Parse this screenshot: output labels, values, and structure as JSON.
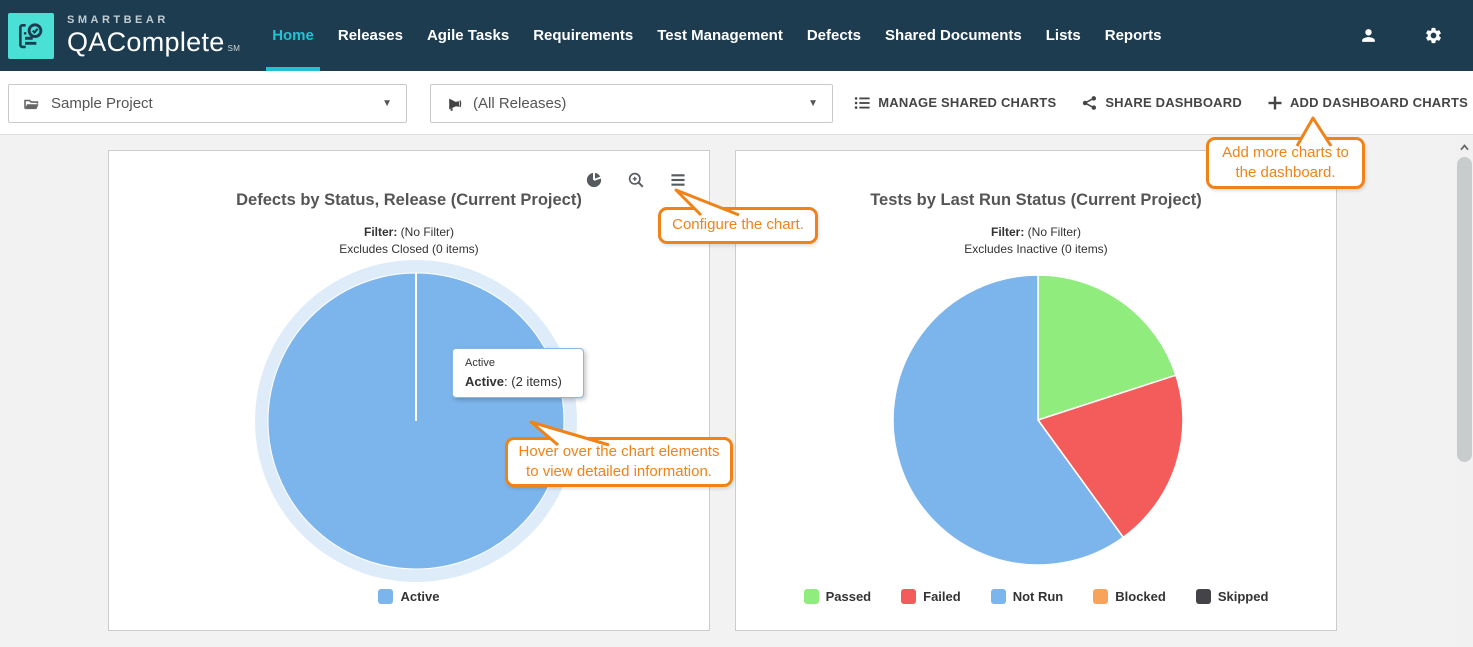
{
  "app": {
    "brand_top": "SMARTBEAR",
    "brand_main": "QAComplete",
    "brand_mark": "SM"
  },
  "colors": {
    "nav_bg": "#1d3c50",
    "accent_teal": "#23c2d2",
    "logo_teal": "#4be0d6",
    "callout_orange": "#ef8318",
    "page_bg": "#f2f2f2",
    "pie_blue": "#7cb5ec",
    "pie_green": "#90ed7d",
    "pie_red": "#f45b5b",
    "pie_orange": "#f7a35c",
    "pie_dark": "#434348"
  },
  "nav": {
    "items": [
      {
        "label": "Home",
        "active": true
      },
      {
        "label": "Releases"
      },
      {
        "label": "Agile Tasks"
      },
      {
        "label": "Requirements"
      },
      {
        "label": "Test Management"
      },
      {
        "label": "Defects"
      },
      {
        "label": "Shared Documents"
      },
      {
        "label": "Lists"
      },
      {
        "label": "Reports"
      }
    ],
    "icons": [
      "user-icon",
      "gear-icon"
    ]
  },
  "toolbar": {
    "project_select": {
      "icon": "folder-icon",
      "value": "Sample Project"
    },
    "release_select": {
      "icon": "megaphone-icon",
      "value": "(All Releases)"
    },
    "actions": [
      {
        "icon": "list-icon",
        "label": "MANAGE SHARED CHARTS"
      },
      {
        "icon": "share-icon",
        "label": "SHARE DASHBOARD"
      },
      {
        "icon": "plus-icon",
        "label": "ADD DASHBOARD CHARTS"
      }
    ]
  },
  "callouts": {
    "add_charts": {
      "line1": "Add more charts to",
      "line2": "the dashboard."
    },
    "configure": {
      "line1": "Configure the chart."
    },
    "hover": {
      "line1": "Hover over the chart elements",
      "line2": "to view detailed information."
    }
  },
  "tooltip": {
    "series": "Active",
    "label": "Active",
    "value": ": (2 items)"
  },
  "chart_data": [
    {
      "type": "pie",
      "title": "Defects by Status, Release (Current Project)",
      "filter_label": "Filter:",
      "filter_value": "(No Filter)",
      "excludes": "Excludes Closed (0 items)",
      "legend_position": "bottom",
      "toolbar_icons": [
        "pie-chart-icon",
        "zoom-in-icon",
        "menu-icon"
      ],
      "slices": [
        {
          "label": "Active",
          "percent": 100,
          "items": 2,
          "color": "#7cb5ec",
          "hovered": true
        }
      ]
    },
    {
      "type": "pie",
      "title": "Tests by Last Run Status (Current Project)",
      "filter_label": "Filter:",
      "filter_value": "(No Filter)",
      "excludes": "Excludes Inactive (0 items)",
      "legend_position": "bottom",
      "slices": [
        {
          "label": "Passed",
          "percent": 20,
          "color": "#90ed7d"
        },
        {
          "label": "Failed",
          "percent": 20,
          "color": "#f45b5b"
        },
        {
          "label": "Not Run",
          "percent": 60,
          "color": "#7cb5ec"
        },
        {
          "label": "Blocked",
          "percent": 0,
          "color": "#f7a35c"
        },
        {
          "label": "Skipped",
          "percent": 0,
          "color": "#434348"
        }
      ]
    }
  ]
}
